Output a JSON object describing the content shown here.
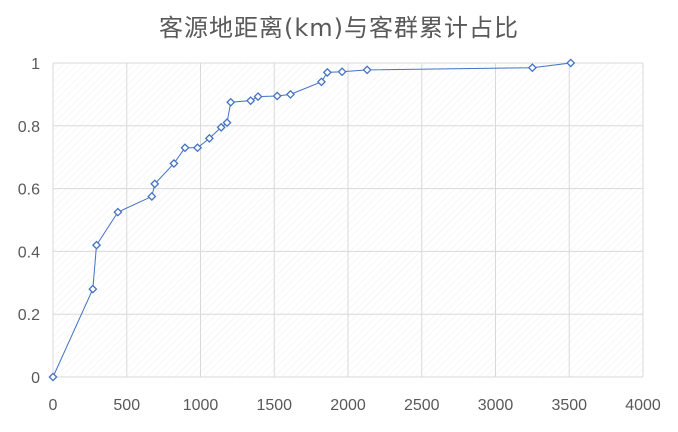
{
  "chart_data": {
    "type": "scatter",
    "title": "客源地距离(km)与客群累计占比",
    "xlabel": "",
    "ylabel": "",
    "xlim": [
      0,
      4000
    ],
    "ylim": [
      0,
      1
    ],
    "x_ticks": [
      0,
      500,
      1000,
      1500,
      2000,
      2500,
      3000,
      3500,
      4000
    ],
    "y_ticks": [
      0,
      0.2,
      0.4,
      0.6,
      0.8,
      1
    ],
    "grid": true,
    "legend": "none",
    "series": [
      {
        "points": [
          {
            "x": 0,
            "y": 0
          },
          {
            "x": 270,
            "y": 0.28
          },
          {
            "x": 295,
            "y": 0.42
          },
          {
            "x": 440,
            "y": 0.525
          },
          {
            "x": 670,
            "y": 0.575
          },
          {
            "x": 690,
            "y": 0.615
          },
          {
            "x": 820,
            "y": 0.68
          },
          {
            "x": 895,
            "y": 0.73
          },
          {
            "x": 980,
            "y": 0.73
          },
          {
            "x": 1060,
            "y": 0.76
          },
          {
            "x": 1140,
            "y": 0.795
          },
          {
            "x": 1180,
            "y": 0.81
          },
          {
            "x": 1205,
            "y": 0.875
          },
          {
            "x": 1340,
            "y": 0.88
          },
          {
            "x": 1390,
            "y": 0.893
          },
          {
            "x": 1520,
            "y": 0.895
          },
          {
            "x": 1610,
            "y": 0.9
          },
          {
            "x": 1820,
            "y": 0.94
          },
          {
            "x": 1860,
            "y": 0.97
          },
          {
            "x": 1960,
            "y": 0.972
          },
          {
            "x": 2130,
            "y": 0.978
          },
          {
            "x": 3250,
            "y": 0.985
          },
          {
            "x": 3510,
            "y": 1.0
          }
        ]
      }
    ]
  },
  "colors": {
    "series": "#4472C4",
    "grid": "#d9d9d9",
    "axis_text": "#595959",
    "marker_fill": "#ffffff"
  }
}
